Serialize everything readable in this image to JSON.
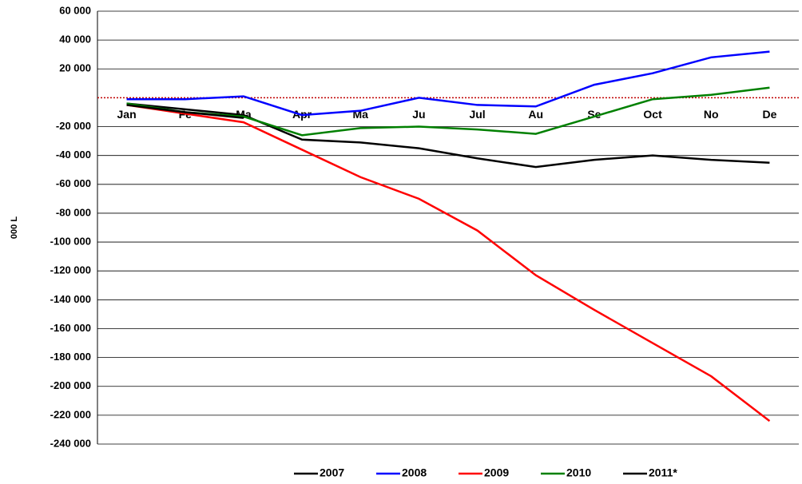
{
  "chart_data": {
    "type": "line",
    "y_label": "000 L",
    "categories": [
      "Jan",
      "Fe",
      "Ma",
      "Apr",
      "Ma",
      "Ju",
      "Jul",
      "Au",
      "Se",
      "Oct",
      "No",
      "De"
    ],
    "series": [
      {
        "name": "2007",
        "color": "#000000",
        "values": [
          -4000,
          -8000,
          -12000,
          -29000,
          -31000,
          -35000,
          -42000,
          -48000,
          -43000,
          -40000,
          -43000,
          -45000
        ]
      },
      {
        "name": "2008",
        "color": "#0000ff",
        "values": [
          -1000,
          -1000,
          1000,
          -12000,
          -9000,
          0,
          -5000,
          -6000,
          9000,
          17000,
          28000,
          32000
        ]
      },
      {
        "name": "2009",
        "color": "#ff0000",
        "values": [
          -5000,
          -11000,
          -17000,
          -36000,
          -55000,
          -70000,
          -92000,
          -123000,
          -147000,
          -170000,
          -193000,
          -224000
        ]
      },
      {
        "name": "2010",
        "color": "#008000",
        "values": [
          -4000,
          -10000,
          -13000,
          -26000,
          -21000,
          -20000,
          -22000,
          -25000,
          -13000,
          -1000,
          2000,
          7000
        ]
      },
      {
        "name": "2011*",
        "color": "#000000",
        "values": [
          -5000,
          -10000,
          -14000,
          null,
          null,
          null,
          null,
          null,
          null,
          null,
          null,
          null
        ]
      }
    ],
    "ylim": [
      -240000,
      60000
    ],
    "yticks": [
      {
        "value": 60000,
        "label": "60 000"
      },
      {
        "value": 40000,
        "label": "40 000"
      },
      {
        "value": 20000,
        "label": "20 000"
      },
      {
        "value": -20000,
        "label": "-20 000"
      },
      {
        "value": -40000,
        "label": "-40 000"
      },
      {
        "value": -60000,
        "label": "-60 000"
      },
      {
        "value": -80000,
        "label": "-80 000"
      },
      {
        "value": -100000,
        "label": "-100 000"
      },
      {
        "value": -120000,
        "label": "-120 000"
      },
      {
        "value": -140000,
        "label": "-140 000"
      },
      {
        "value": -160000,
        "label": "-160 000"
      },
      {
        "value": -180000,
        "label": "-180 000"
      },
      {
        "value": -200000,
        "label": "-200 000"
      },
      {
        "value": -220000,
        "label": "-220 000"
      },
      {
        "value": -240000,
        "label": "-240 000"
      }
    ],
    "grid": true
  }
}
